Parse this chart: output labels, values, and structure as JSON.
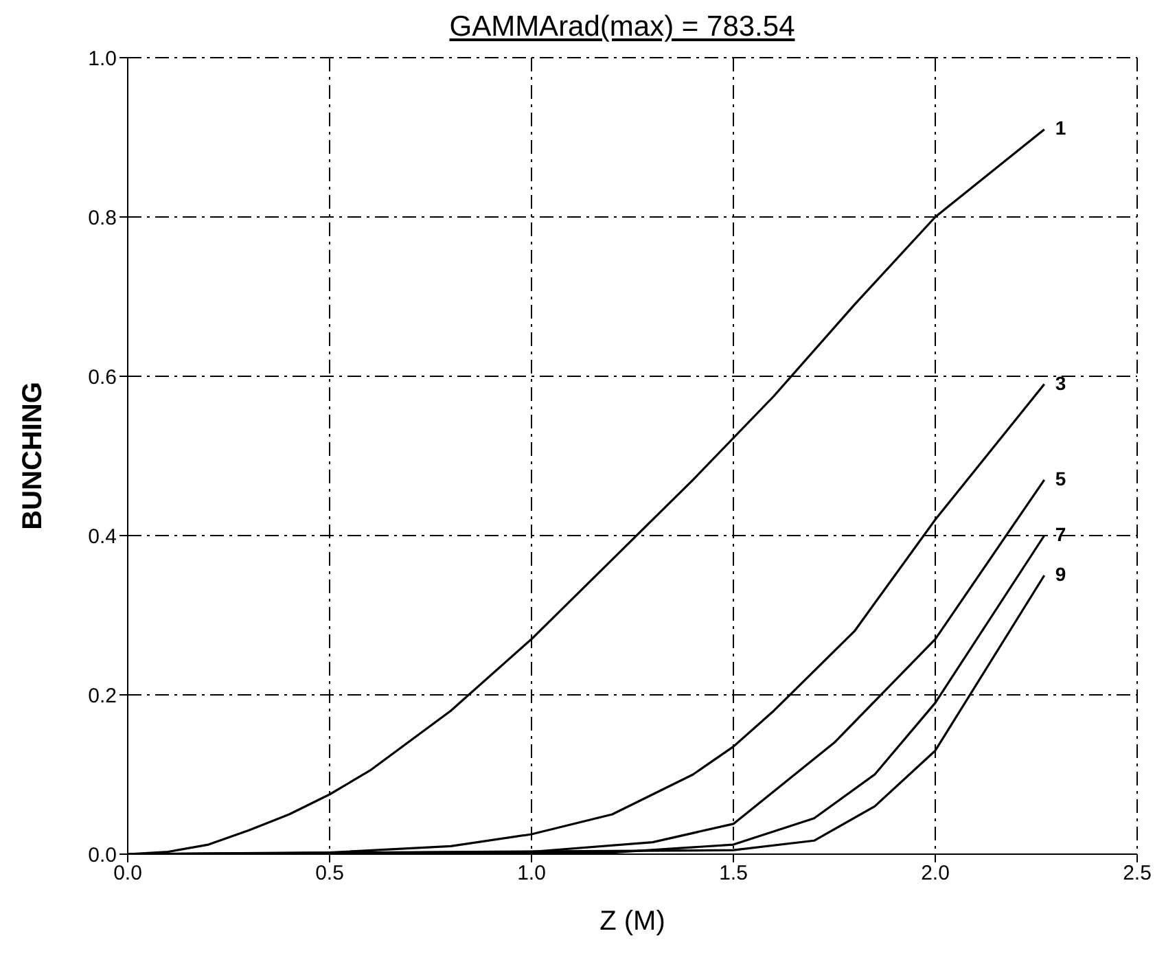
{
  "chart_data": {
    "type": "line",
    "title": "GAMMArad(max) = 783.54",
    "xlabel": "Z (M)",
    "ylabel": "BUNCHING",
    "xlim": [
      0,
      2.5
    ],
    "xticks": [
      {
        "value": 0,
        "label": "0.0"
      },
      0.5,
      {
        "value": 1,
        "label": "1.0"
      },
      1.5,
      {
        "value": 2,
        "label": "2.0"
      },
      2.5
    ],
    "ylim": [
      0,
      1
    ],
    "yticks": [
      {
        "value": 0,
        "label": "0.0"
      },
      0.2,
      0.4,
      0.6,
      0.8,
      {
        "value": 1,
        "label": "1.0"
      }
    ],
    "grid": true,
    "legend": false,
    "marker": "none",
    "line_style": "solid",
    "series": [
      {
        "name": "1",
        "color": "#000000",
        "x": [
          0,
          0.1,
          0.2,
          0.3,
          0.4,
          0.5,
          0.6,
          0.8,
          1.0,
          1.2,
          1.4,
          1.6,
          1.8,
          2.0,
          2.27
        ],
        "values": [
          0,
          0.003,
          0.012,
          0.03,
          0.05,
          0.075,
          0.105,
          0.18,
          0.27,
          0.37,
          0.47,
          0.575,
          0.69,
          0.8,
          0.91
        ]
      },
      {
        "name": "3",
        "color": "#000000",
        "x": [
          0,
          0.5,
          0.8,
          1.0,
          1.2,
          1.4,
          1.5,
          1.6,
          1.8,
          2.0,
          2.27
        ],
        "values": [
          0,
          0.002,
          0.01,
          0.025,
          0.05,
          0.1,
          0.135,
          0.18,
          0.28,
          0.42,
          0.59
        ]
      },
      {
        "name": "5",
        "color": "#000000",
        "x": [
          0,
          1.0,
          1.3,
          1.5,
          1.75,
          2.0,
          2.27
        ],
        "values": [
          0,
          0.003,
          0.015,
          0.038,
          0.14,
          0.27,
          0.47
        ]
      },
      {
        "name": "7",
        "color": "#000000",
        "x": [
          0,
          1.2,
          1.5,
          1.7,
          1.85,
          2.0,
          2.27
        ],
        "values": [
          0,
          0.002,
          0.012,
          0.045,
          0.1,
          0.19,
          0.4
        ]
      },
      {
        "name": "9",
        "color": "#000000",
        "x": [
          0,
          1.5,
          1.7,
          1.85,
          2.0,
          2.27
        ],
        "values": [
          0,
          0.005,
          0.017,
          0.06,
          0.13,
          0.35
        ]
      }
    ]
  }
}
